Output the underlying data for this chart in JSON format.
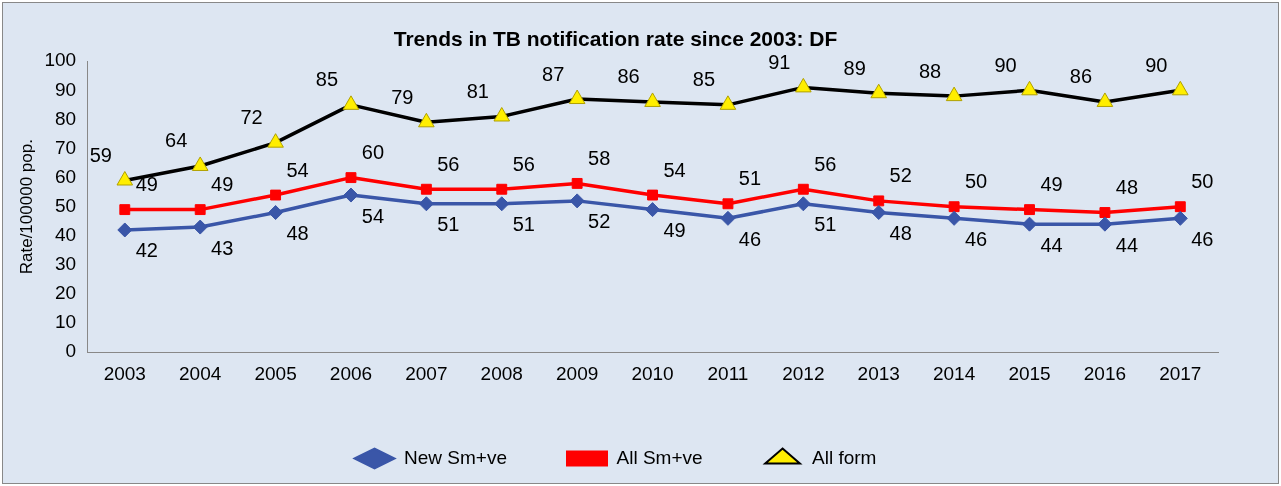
{
  "chart_data": {
    "type": "line",
    "title": "Trends in TB notification rate since 2003: DF",
    "ylabel": "Rate/100000 pop.",
    "categories": [
      "2003",
      "2004",
      "2005",
      "2006",
      "2007",
      "2008",
      "2009",
      "2010",
      "2011",
      "2012",
      "2013",
      "2014",
      "2015",
      "2016",
      "2017"
    ],
    "series": [
      {
        "name": "New Sm+ve",
        "color": "#3a56a8",
        "marker": "diamond",
        "values": [
          42,
          43,
          48,
          54,
          51,
          51,
          52,
          49,
          46,
          51,
          48,
          46,
          44,
          44,
          46
        ]
      },
      {
        "name": "All Sm+ve",
        "color": "#ff0000",
        "marker": "square",
        "values": [
          49,
          49,
          54,
          60,
          56,
          56,
          58,
          54,
          51,
          56,
          52,
          50,
          49,
          48,
          50
        ]
      },
      {
        "name": "All form",
        "color": "#000000",
        "marker": "triangle",
        "values": [
          59,
          64,
          72,
          85,
          79,
          81,
          87,
          86,
          85,
          91,
          89,
          88,
          90,
          86,
          90
        ]
      }
    ],
    "ylim": [
      0,
      100
    ],
    "yticks": [
      0,
      10,
      20,
      30,
      40,
      50,
      60,
      70,
      80,
      90,
      100
    ],
    "grid": false,
    "legend": "bottom",
    "data_labels": true,
    "line_style": "solid"
  }
}
